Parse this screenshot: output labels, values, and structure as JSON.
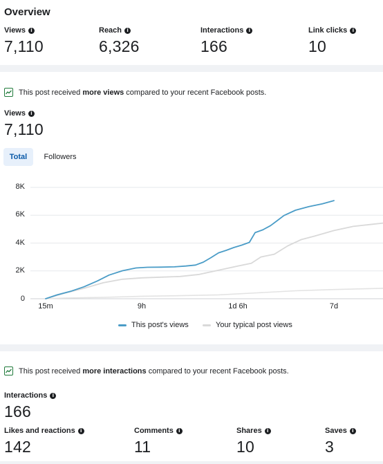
{
  "overview": {
    "title": "Overview",
    "metrics": [
      {
        "label": "Views",
        "value": "7,110"
      },
      {
        "label": "Reach",
        "value": "6,326"
      },
      {
        "label": "Interactions",
        "value": "166"
      },
      {
        "label": "Link clicks",
        "value": "10"
      }
    ]
  },
  "views_section": {
    "notice_prefix": "This post received ",
    "notice_bold": "more views",
    "notice_suffix": " compared to your recent Facebook posts.",
    "metric_label": "Views",
    "metric_value": "7,110",
    "tabs": {
      "total": "Total",
      "followers": "Followers"
    }
  },
  "interactions_section": {
    "notice_prefix": "This post received ",
    "notice_bold": "more interactions",
    "notice_suffix": " compared to your recent Facebook posts.",
    "metric_label": "Interactions",
    "metric_value": "166",
    "breakdown": [
      {
        "label": "Likes and reactions",
        "value": "142"
      },
      {
        "label": "Comments",
        "value": "11"
      },
      {
        "label": "Shares",
        "value": "10"
      },
      {
        "label": "Saves",
        "value": "3"
      }
    ]
  },
  "colors": {
    "this_post": "#4a9cc7",
    "typical": "#d9d9d9",
    "accent_tab": "#0a5aa8",
    "trend_icon": "#1f7a3a"
  },
  "icons": {
    "info": "info-icon",
    "trend": "trend-up-icon"
  },
  "chart_data": {
    "type": "line",
    "title": "",
    "xlabel": "",
    "ylabel": "",
    "ylim": [
      0,
      8000
    ],
    "yticks": [
      "0",
      "2K",
      "4K",
      "6K",
      "8K"
    ],
    "xticks": [
      "15m",
      "9h",
      "1d 6h",
      "7d"
    ],
    "grid": true,
    "legend_position": "bottom-center",
    "series": [
      {
        "name": "This post's views",
        "points": [
          [
            0,
            0
          ],
          [
            0.06,
            280
          ],
          [
            0.13,
            530
          ],
          [
            0.2,
            860
          ],
          [
            0.27,
            1280
          ],
          [
            0.33,
            1700
          ],
          [
            0.4,
            2010
          ],
          [
            0.47,
            2210
          ],
          [
            0.53,
            2260
          ],
          [
            0.6,
            2270
          ],
          [
            0.67,
            2290
          ],
          [
            0.73,
            2350
          ],
          [
            0.78,
            2420
          ],
          [
            0.82,
            2630
          ],
          [
            0.86,
            2950
          ],
          [
            0.9,
            3300
          ],
          [
            0.94,
            3480
          ],
          [
            0.98,
            3680
          ],
          [
            1.02,
            3850
          ],
          [
            1.06,
            4050
          ],
          [
            1.09,
            4750
          ],
          [
            1.13,
            4950
          ],
          [
            1.17,
            5250
          ],
          [
            1.2,
            5560
          ],
          [
            1.24,
            5980
          ],
          [
            1.3,
            6360
          ],
          [
            1.37,
            6620
          ],
          [
            1.44,
            6820
          ],
          [
            1.5,
            7050
          ]
        ]
      },
      {
        "name": "Your typical post views",
        "points": [
          [
            0,
            0
          ],
          [
            0.1,
            400
          ],
          [
            0.2,
            750
          ],
          [
            0.3,
            1150
          ],
          [
            0.4,
            1400
          ],
          [
            0.5,
            1500
          ],
          [
            0.6,
            1550
          ],
          [
            0.7,
            1600
          ],
          [
            0.8,
            1750
          ],
          [
            0.9,
            2050
          ],
          [
            1.0,
            2350
          ],
          [
            1.07,
            2550
          ],
          [
            1.12,
            3000
          ],
          [
            1.19,
            3200
          ],
          [
            1.26,
            3800
          ],
          [
            1.33,
            4250
          ],
          [
            1.4,
            4500
          ],
          [
            1.5,
            4900
          ],
          [
            1.6,
            5200
          ],
          [
            1.7,
            5350
          ],
          [
            1.8,
            5500
          ],
          [
            1.9,
            5600
          ]
        ]
      },
      {
        "name": "",
        "points": [
          [
            0,
            0
          ],
          [
            0.1,
            50
          ],
          [
            0.3,
            100
          ],
          [
            0.5,
            180
          ],
          [
            0.7,
            220
          ],
          [
            0.9,
            280
          ],
          [
            1.1,
            420
          ],
          [
            1.3,
            570
          ],
          [
            1.5,
            660
          ],
          [
            1.7,
            730
          ],
          [
            1.9,
            790
          ]
        ]
      }
    ]
  }
}
